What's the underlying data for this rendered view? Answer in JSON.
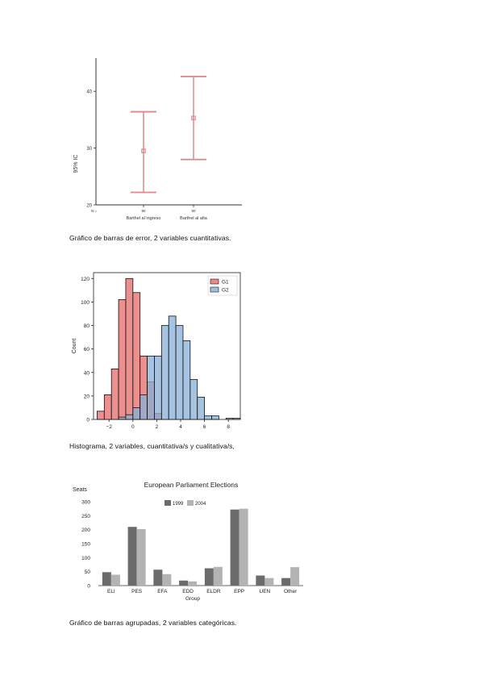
{
  "captions": {
    "fig1": "Gráfico de barras de error, 2 variables cuantitativas.",
    "fig2": "Histograma, 2 variables, cuantitativa/s y cualitativa/s,",
    "fig3": "Gráfico de barras agrupadas, 2 variables categóricas."
  },
  "chart_data": [
    {
      "type": "errorbar",
      "ylabel": "95% IC",
      "ylim": [
        20,
        45
      ],
      "yticks": [
        "20",
        "30",
        "40"
      ],
      "categories": [
        "Barthel al ingreso",
        "Barthel al alta"
      ],
      "category_ticks": [
        "90",
        "90"
      ],
      "corner_label": "N =",
      "means": [
        29.5,
        35.3
      ],
      "lower": [
        22.2,
        28.0
      ],
      "upper": [
        36.4,
        42.6
      ],
      "color": "#d98a8a",
      "grid": false
    },
    {
      "type": "histogram",
      "ylabel": "Count",
      "xlim": [
        -3.3,
        9
      ],
      "ylim": [
        0,
        125
      ],
      "xticks": [
        "-2",
        "0",
        "2",
        "4",
        "6",
        "8"
      ],
      "yticks": [
        "0",
        "20",
        "40",
        "60",
        "80",
        "100",
        "120"
      ],
      "legend": {
        "position": "top-right",
        "labels": [
          "G1",
          "G2"
        ]
      },
      "colors": {
        "G1": "#e66a6a",
        "G2": "#88b0d8"
      },
      "series": [
        {
          "name": "G1",
          "bins": [
            [
              -3.0,
              -2.4,
              7
            ],
            [
              -2.4,
              -1.8,
              21
            ],
            [
              -1.8,
              -1.2,
              43
            ],
            [
              -1.2,
              -0.6,
              102
            ],
            [
              -0.6,
              0.0,
              120
            ],
            [
              0.0,
              0.6,
              108
            ],
            [
              0.6,
              1.2,
              54
            ],
            [
              1.2,
              1.8,
              32
            ],
            [
              1.8,
              2.4,
              5
            ]
          ]
        },
        {
          "name": "G2",
          "bins": [
            [
              -1.2,
              -0.6,
              2
            ],
            [
              -0.6,
              0.0,
              4
            ],
            [
              0.0,
              0.6,
              10
            ],
            [
              0.6,
              1.2,
              21
            ],
            [
              1.2,
              1.8,
              54
            ],
            [
              1.8,
              2.4,
              54
            ],
            [
              2.4,
              3.0,
              80
            ],
            [
              3.0,
              3.6,
              88
            ],
            [
              3.6,
              4.2,
              80
            ],
            [
              4.2,
              4.8,
              67
            ],
            [
              4.8,
              5.4,
              34
            ],
            [
              5.4,
              6.0,
              19
            ],
            [
              6.0,
              6.6,
              3
            ],
            [
              6.6,
              7.2,
              3
            ],
            [
              7.8,
              8.4,
              1
            ],
            [
              8.4,
              9.0,
              1
            ]
          ]
        }
      ]
    },
    {
      "type": "bar",
      "title": "European Parliament Elections",
      "xlabel": "Group",
      "ylabel": "Seats",
      "ylim": [
        0,
        300
      ],
      "yticks": [
        "0",
        "50",
        "100",
        "150",
        "200",
        "250",
        "300"
      ],
      "categories": [
        "ELI",
        "PES",
        "EFA",
        "EDD",
        "ELDR",
        "EPP",
        "UEN",
        "Other"
      ],
      "series": [
        {
          "name": "1999",
          "color": "#6b6b6b",
          "values": [
            48,
            210,
            57,
            18,
            62,
            272,
            36,
            27
          ]
        },
        {
          "name": "2004",
          "color": "#b3b3b3",
          "values": [
            39,
            202,
            41,
            15,
            67,
            275,
            27,
            66
          ]
        }
      ],
      "legend": {
        "position": "top-center"
      },
      "grid": false
    }
  ]
}
